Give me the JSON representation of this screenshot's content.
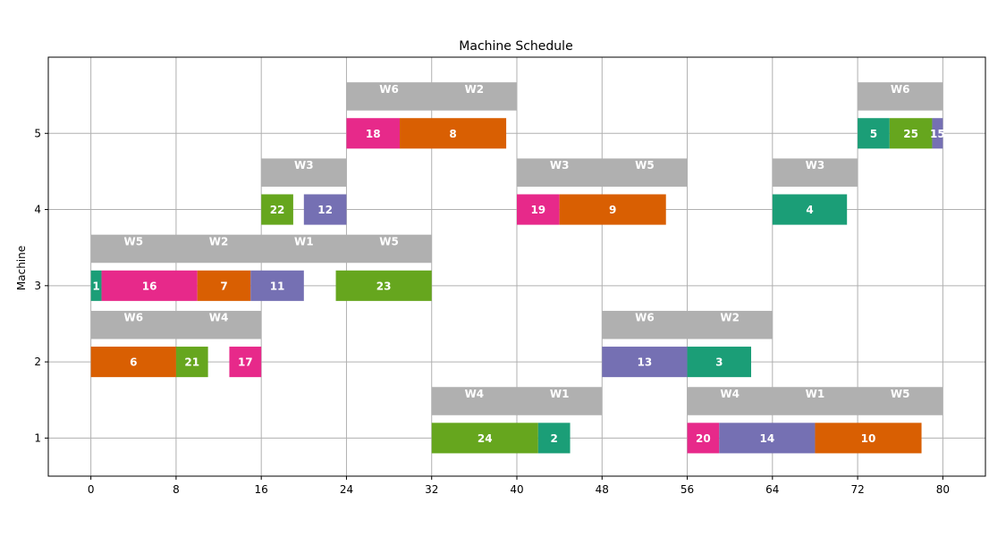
{
  "chart_data": {
    "type": "gantt",
    "title": "Machine Schedule",
    "xlabel": "",
    "ylabel": "Machine",
    "xlim": [
      -4,
      84
    ],
    "ylim": [
      0.5,
      6
    ],
    "xticks": [
      0,
      8,
      16,
      24,
      32,
      40,
      48,
      56,
      64,
      72,
      80
    ],
    "yticks": [
      1,
      2,
      3,
      4,
      5
    ],
    "grid": true,
    "colors": {
      "teal": "#1b9e77",
      "orange": "#d95f02",
      "purple": "#7570b3",
      "pink": "#e7298a",
      "green": "#66a61e",
      "window": "#b0b0b0"
    },
    "windows": [
      {
        "machine": 1,
        "label": "W4",
        "start": 32,
        "end": 40
      },
      {
        "machine": 1,
        "label": "W1",
        "start": 40,
        "end": 48
      },
      {
        "machine": 1,
        "label": "W4",
        "start": 56,
        "end": 64
      },
      {
        "machine": 1,
        "label": "W1",
        "start": 64,
        "end": 72
      },
      {
        "machine": 1,
        "label": "W5",
        "start": 72,
        "end": 80
      },
      {
        "machine": 2,
        "label": "W6",
        "start": 0,
        "end": 8
      },
      {
        "machine": 2,
        "label": "W4",
        "start": 8,
        "end": 16
      },
      {
        "machine": 2,
        "label": "W6",
        "start": 48,
        "end": 56
      },
      {
        "machine": 2,
        "label": "W2",
        "start": 56,
        "end": 64
      },
      {
        "machine": 3,
        "label": "W5",
        "start": 0,
        "end": 8
      },
      {
        "machine": 3,
        "label": "W2",
        "start": 8,
        "end": 16
      },
      {
        "machine": 3,
        "label": "W1",
        "start": 16,
        "end": 24
      },
      {
        "machine": 3,
        "label": "W5",
        "start": 24,
        "end": 32
      },
      {
        "machine": 4,
        "label": "W3",
        "start": 16,
        "end": 24
      },
      {
        "machine": 4,
        "label": "W3",
        "start": 40,
        "end": 48
      },
      {
        "machine": 4,
        "label": "W5",
        "start": 48,
        "end": 56
      },
      {
        "machine": 4,
        "label": "W3",
        "start": 64,
        "end": 72
      },
      {
        "machine": 5,
        "label": "W6",
        "start": 24,
        "end": 32
      },
      {
        "machine": 5,
        "label": "W2",
        "start": 32,
        "end": 40
      },
      {
        "machine": 5,
        "label": "W6",
        "start": 72,
        "end": 80
      }
    ],
    "jobs": [
      {
        "machine": 1,
        "label": "24",
        "start": 32,
        "end": 42,
        "color": "#66a61e"
      },
      {
        "machine": 1,
        "label": "2",
        "start": 42,
        "end": 45,
        "color": "#1b9e77"
      },
      {
        "machine": 1,
        "label": "20",
        "start": 56,
        "end": 59,
        "color": "#e7298a"
      },
      {
        "machine": 1,
        "label": "14",
        "start": 59,
        "end": 68,
        "color": "#7570b3"
      },
      {
        "machine": 1,
        "label": "10",
        "start": 68,
        "end": 78,
        "color": "#d95f02"
      },
      {
        "machine": 2,
        "label": "6",
        "start": 0,
        "end": 8,
        "color": "#d95f02"
      },
      {
        "machine": 2,
        "label": "21",
        "start": 8,
        "end": 11,
        "color": "#66a61e"
      },
      {
        "machine": 2,
        "label": "17",
        "start": 13,
        "end": 16,
        "color": "#e7298a"
      },
      {
        "machine": 2,
        "label": "13",
        "start": 48,
        "end": 56,
        "color": "#7570b3"
      },
      {
        "machine": 2,
        "label": "3",
        "start": 56,
        "end": 62,
        "color": "#1b9e77"
      },
      {
        "machine": 3,
        "label": "1",
        "start": 0,
        "end": 1,
        "color": "#1b9e77"
      },
      {
        "machine": 3,
        "label": "16",
        "start": 1,
        "end": 10,
        "color": "#e7298a"
      },
      {
        "machine": 3,
        "label": "7",
        "start": 10,
        "end": 15,
        "color": "#d95f02"
      },
      {
        "machine": 3,
        "label": "11",
        "start": 15,
        "end": 20,
        "color": "#7570b3"
      },
      {
        "machine": 3,
        "label": "23",
        "start": 23,
        "end": 32,
        "color": "#66a61e"
      },
      {
        "machine": 4,
        "label": "22",
        "start": 16,
        "end": 19,
        "color": "#66a61e"
      },
      {
        "machine": 4,
        "label": "12",
        "start": 20,
        "end": 24,
        "color": "#7570b3"
      },
      {
        "machine": 4,
        "label": "19",
        "start": 40,
        "end": 44,
        "color": "#e7298a"
      },
      {
        "machine": 4,
        "label": "9",
        "start": 44,
        "end": 54,
        "color": "#d95f02"
      },
      {
        "machine": 4,
        "label": "4",
        "start": 64,
        "end": 71,
        "color": "#1b9e77"
      },
      {
        "machine": 5,
        "label": "18",
        "start": 24,
        "end": 29,
        "color": "#e7298a"
      },
      {
        "machine": 5,
        "label": "8",
        "start": 29,
        "end": 39,
        "color": "#d95f02"
      },
      {
        "machine": 5,
        "label": "5",
        "start": 72,
        "end": 75,
        "color": "#1b9e77"
      },
      {
        "machine": 5,
        "label": "25",
        "start": 75,
        "end": 79,
        "color": "#66a61e"
      },
      {
        "machine": 5,
        "label": "15",
        "start": 79,
        "end": 80,
        "color": "#7570b3"
      }
    ]
  }
}
